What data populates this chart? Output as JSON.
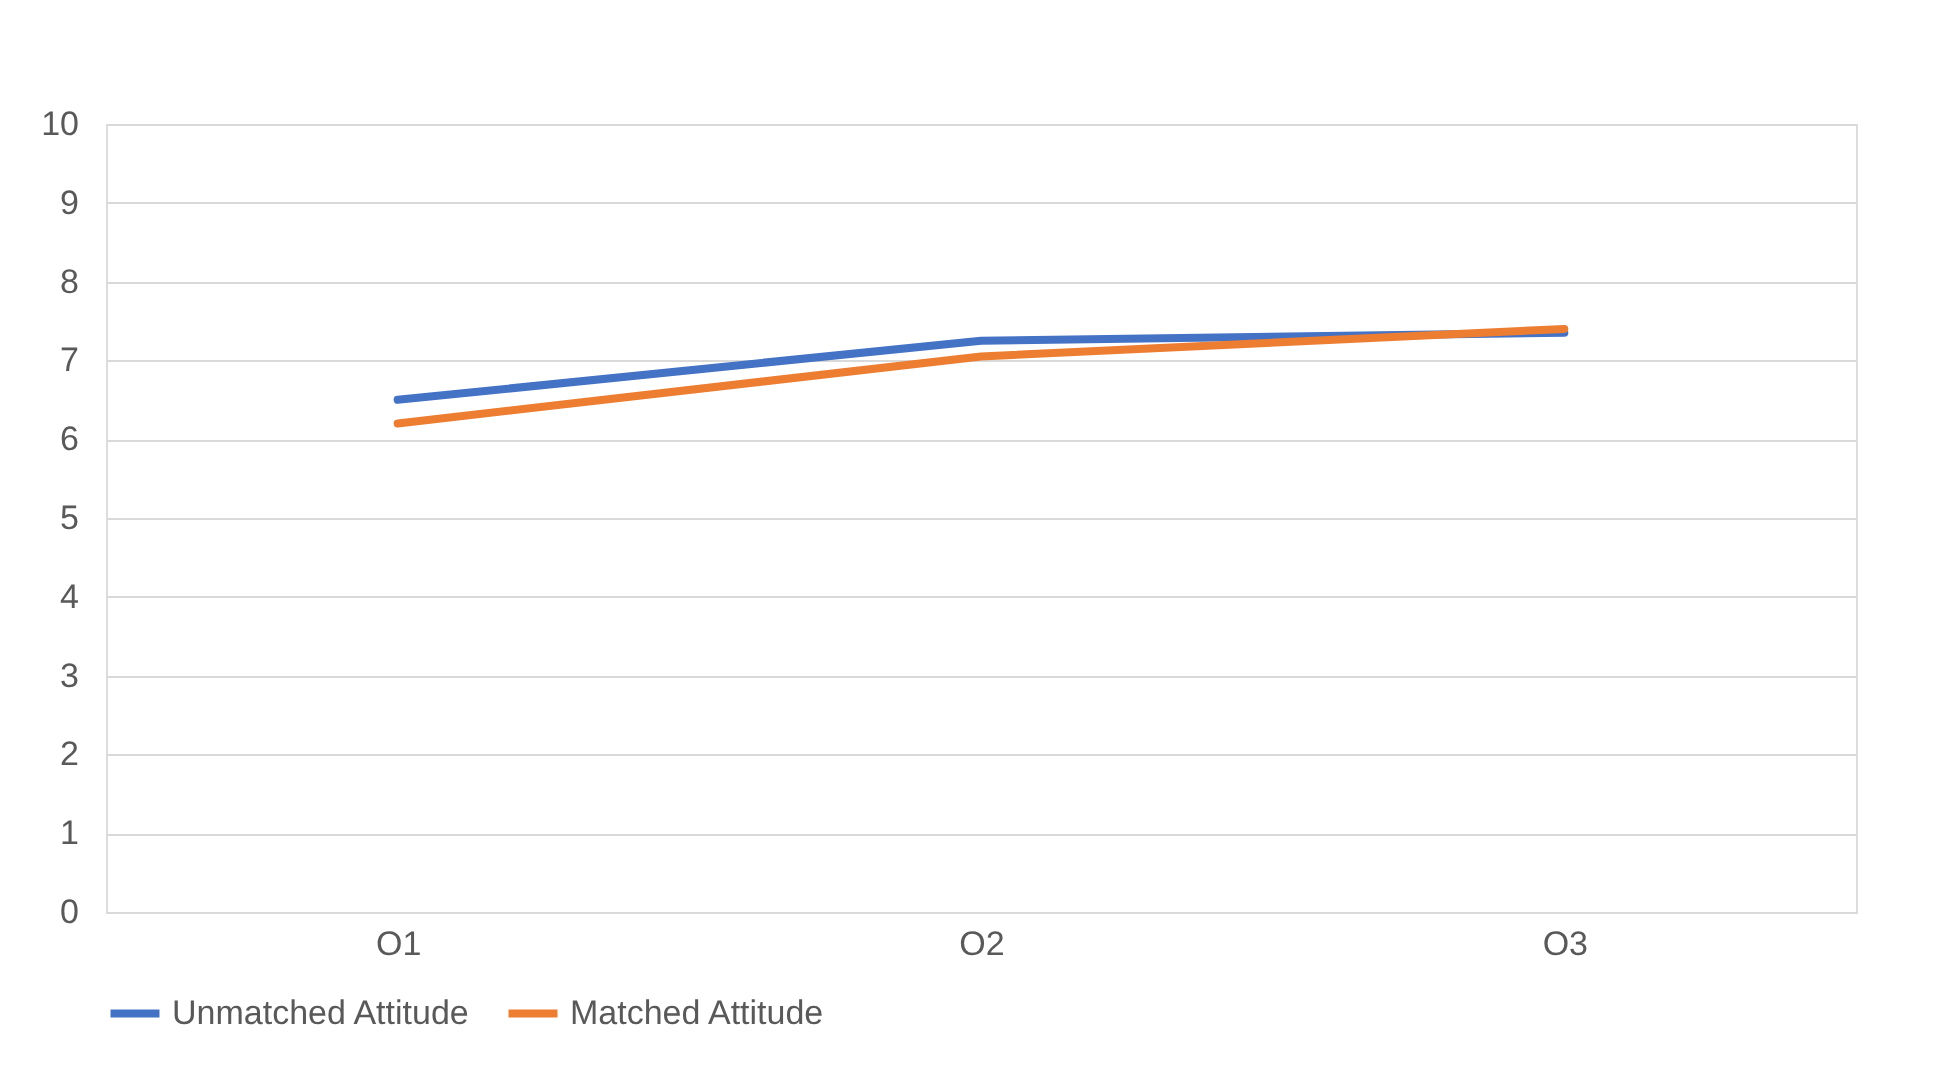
{
  "chart_data": {
    "type": "line",
    "categories": [
      "O1",
      "O2",
      "O3"
    ],
    "series": [
      {
        "name": "Unmatched Attitude",
        "color": "#4472c4",
        "values": [
          6.5,
          7.25,
          7.35
        ]
      },
      {
        "name": "Matched Attitude",
        "color": "#ed7d31",
        "values": [
          6.2,
          7.05,
          7.4
        ]
      }
    ],
    "ylim": [
      0,
      10
    ],
    "yticks": [
      0,
      1,
      2,
      3,
      4,
      5,
      6,
      7,
      8,
      9,
      10
    ],
    "grid": "y",
    "legend": "bottom",
    "marker": "none",
    "line_style": "solid"
  }
}
